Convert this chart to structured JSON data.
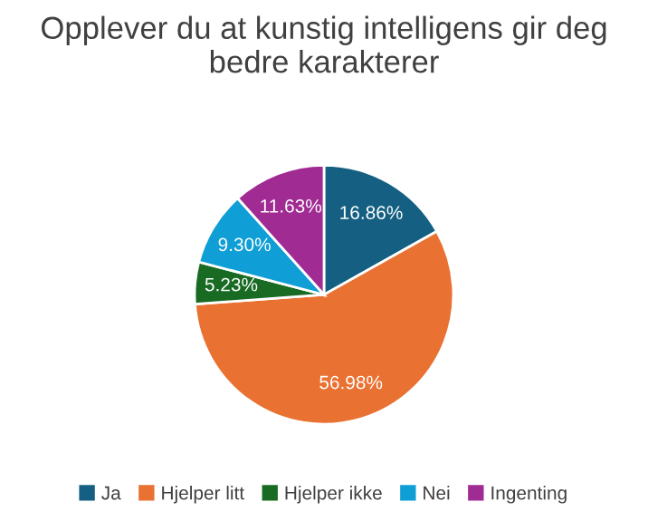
{
  "chart_data": {
    "type": "pie",
    "title": "Opplever du at kunstig intelligens gir deg bedre karakterer",
    "categories": [
      "Ja",
      "Hjelper litt",
      "Hjelper ikke",
      "Nei",
      "Ingenting"
    ],
    "values": [
      16.86,
      56.98,
      5.23,
      9.3,
      11.63
    ],
    "colors": [
      "#156082",
      "#e97132",
      "#196b24",
      "#0f9ed5",
      "#a02b93"
    ],
    "value_labels": [
      "16.86%",
      "56.98%",
      "5.23%",
      "9.30%",
      "11.63%"
    ],
    "legend": "bottom"
  }
}
